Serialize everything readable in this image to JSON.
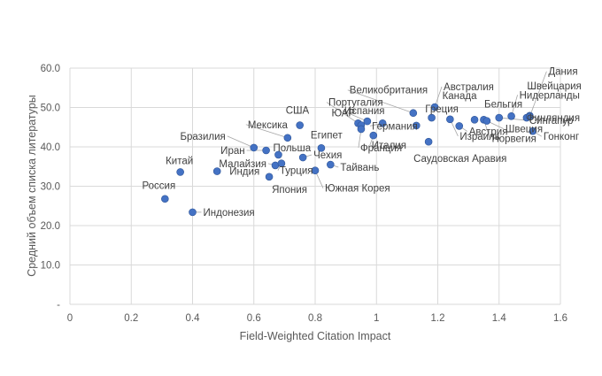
{
  "chart_data": {
    "type": "scatter",
    "title": "",
    "xlabel": "Field-Weighted Citation Impact",
    "ylabel": "Средний объем списка литературы",
    "xlim": [
      0,
      1.6
    ],
    "ylim": [
      0,
      60
    ],
    "x_ticks": [
      "0",
      "0.2",
      "0.4",
      "0.6",
      "0.8",
      "1",
      "1.2",
      "1.4",
      "1.6"
    ],
    "y_ticks": [
      "-",
      "10.0",
      "20.0",
      "30.0",
      "40.0",
      "50.0",
      "60.0"
    ],
    "grid": true,
    "points": [
      {
        "label": "Россия",
        "x": 0.31,
        "y": 26.8
      },
      {
        "label": "Китай",
        "x": 0.36,
        "y": 33.6
      },
      {
        "label": "Индонезия",
        "x": 0.4,
        "y": 23.4
      },
      {
        "label": "Индия",
        "x": 0.48,
        "y": 33.8
      },
      {
        "label": "Бразилия",
        "x": 0.6,
        "y": 39.8
      },
      {
        "label": "Иран",
        "x": 0.64,
        "y": 39.1
      },
      {
        "label": "Япония",
        "x": 0.65,
        "y": 32.4
      },
      {
        "label": "Малайзия",
        "x": 0.67,
        "y": 35.3
      },
      {
        "label": "Турция",
        "x": 0.69,
        "y": 35.8
      },
      {
        "label": "Польша",
        "x": 0.68,
        "y": 38.0
      },
      {
        "label": "Мексика",
        "x": 0.71,
        "y": 42.3
      },
      {
        "label": "США",
        "x": 0.75,
        "y": 45.5
      },
      {
        "label": "Чехия",
        "x": 0.76,
        "y": 37.3
      },
      {
        "label": "Южная Корея",
        "x": 0.8,
        "y": 34.0
      },
      {
        "label": "Египет",
        "x": 0.82,
        "y": 39.7
      },
      {
        "label": "Тайвань",
        "x": 0.85,
        "y": 35.5
      },
      {
        "label": "ЮАР",
        "x": 0.94,
        "y": 46.0
      },
      {
        "label": "Португалия",
        "x": 0.95,
        "y": 45.5
      },
      {
        "label": "Франция",
        "x": 0.95,
        "y": 44.5
      },
      {
        "label": "Испания",
        "x": 0.97,
        "y": 46.5
      },
      {
        "label": "Италия",
        "x": 0.99,
        "y": 42.9
      },
      {
        "label": "Германия",
        "x": 1.02,
        "y": 46.0
      },
      {
        "label": "Великобритания",
        "x": 1.12,
        "y": 48.6
      },
      {
        "label": "Саудовская Аравия",
        "x": 1.17,
        "y": 41.3
      },
      {
        "label": "Греция",
        "x": 1.13,
        "y": 45.4
      },
      {
        "label": "Австралия",
        "x": 1.19,
        "y": 50.1
      },
      {
        "label": "Канада",
        "x": 1.18,
        "y": 47.4
      },
      {
        "label": "Израиль",
        "x": 1.24,
        "y": 47.0
      },
      {
        "label": "Австрия",
        "x": 1.27,
        "y": 45.3
      },
      {
        "label": "Бельгия",
        "x": 1.32,
        "y": 46.9
      },
      {
        "label": "Норвегия",
        "x": 1.35,
        "y": 46.9
      },
      {
        "label": "Швеция",
        "x": 1.36,
        "y": 46.6
      },
      {
        "label": "Сингапур",
        "x": 1.4,
        "y": 47.4
      },
      {
        "label": "Нидерланды",
        "x": 1.44,
        "y": 47.8
      },
      {
        "label": "Финляндия",
        "x": 1.49,
        "y": 47.4
      },
      {
        "label": "Швейцария",
        "x": 1.5,
        "y": 47.9
      },
      {
        "label": "Дания",
        "x": 1.5,
        "y": 47.7
      },
      {
        "label": "Гонконг",
        "x": 1.51,
        "y": 44.0
      }
    ]
  },
  "colors": {
    "point": "#4472c4",
    "grid": "#d9d9d9",
    "text": "#595959"
  }
}
